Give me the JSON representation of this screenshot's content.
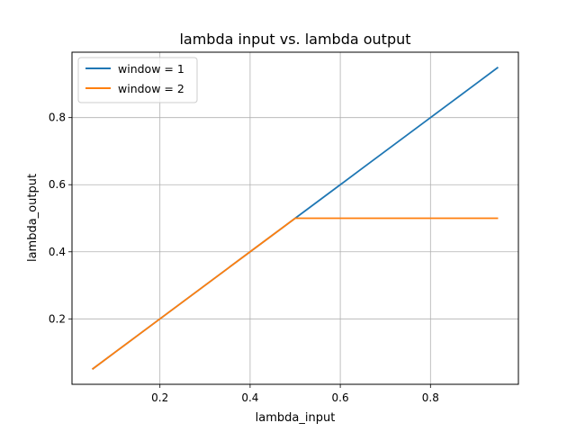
{
  "chart_data": {
    "type": "line",
    "title": "lambda input vs. lambda output",
    "xlabel": "lambda_input",
    "ylabel": "lambda_output",
    "xlim": [
      0.005,
      0.995
    ],
    "ylim": [
      0.005,
      0.995
    ],
    "xticks": [
      0.2,
      0.4,
      0.6,
      0.8
    ],
    "yticks": [
      0.2,
      0.4,
      0.6,
      0.8
    ],
    "xtick_labels": [
      "0.2",
      "0.4",
      "0.6",
      "0.8"
    ],
    "ytick_labels": [
      "0.2",
      "0.4",
      "0.6",
      "0.8"
    ],
    "grid": true,
    "legend_position": "top-left",
    "x": [
      0.05,
      0.1,
      0.15,
      0.2,
      0.25,
      0.3,
      0.35,
      0.4,
      0.45,
      0.5,
      0.55,
      0.6,
      0.65,
      0.7,
      0.75,
      0.8,
      0.85,
      0.9,
      0.95
    ],
    "series": [
      {
        "name": "window = 1",
        "color": "#1f77b4",
        "values": [
          0.05,
          0.1,
          0.15,
          0.2,
          0.25,
          0.3,
          0.35,
          0.4,
          0.45,
          0.5,
          0.55,
          0.6,
          0.65,
          0.7,
          0.75,
          0.8,
          0.85,
          0.9,
          0.95
        ]
      },
      {
        "name": "window = 2",
        "color": "#ff7f0e",
        "values": [
          0.05,
          0.1,
          0.15,
          0.2,
          0.25,
          0.3,
          0.35,
          0.4,
          0.45,
          0.5,
          0.5,
          0.5,
          0.5,
          0.5,
          0.5,
          0.5,
          0.5,
          0.5,
          0.5
        ]
      }
    ]
  }
}
